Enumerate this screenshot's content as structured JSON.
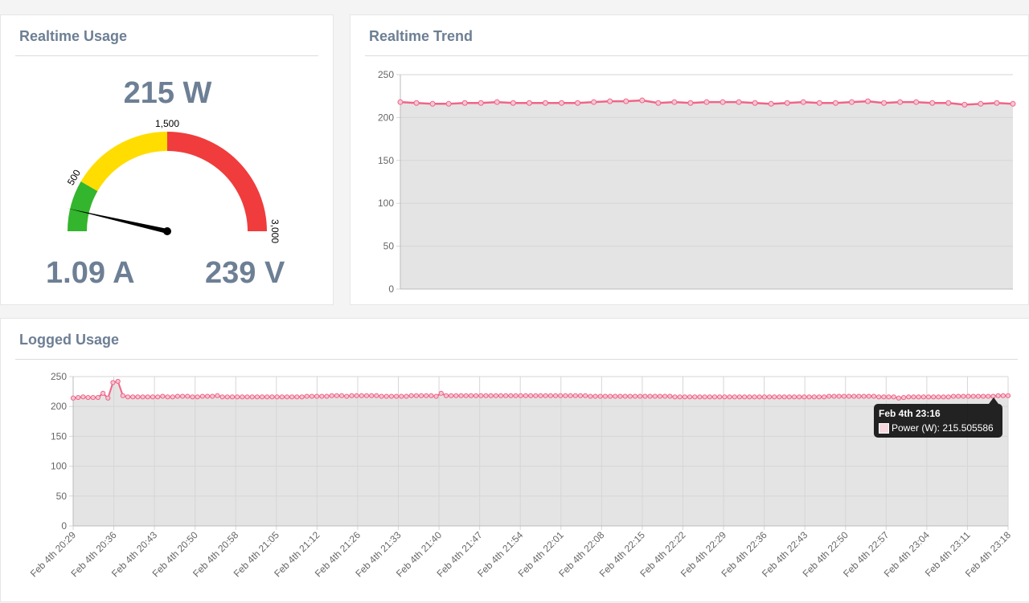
{
  "usage_panel": {
    "title": "Realtime Usage",
    "power": "215 W",
    "current": "1.09 A",
    "voltage": "239 V",
    "gauge": {
      "min": 0,
      "max": 3000,
      "value": 215,
      "bands": [
        {
          "from": 0,
          "to": 500,
          "color": "#33b52d"
        },
        {
          "from": 500,
          "to": 1500,
          "color": "#ffdd00"
        },
        {
          "from": 1500,
          "to": 3000,
          "color": "#f03c3c"
        }
      ],
      "tick_labels": [
        "500",
        "1,500",
        "3,000"
      ],
      "tick_values": [
        500,
        1500,
        3000
      ]
    }
  },
  "trend_panel": {
    "title": "Realtime Trend"
  },
  "logged_panel": {
    "title": "Logged Usage"
  },
  "tooltip": {
    "title": "Feb 4th 23:16",
    "label": "Power (W): 215.505586"
  },
  "colors": {
    "line": "#f06488",
    "fill": "#e4e4e4",
    "title": "#6d7f94"
  },
  "chart_data": [
    {
      "type": "area",
      "title": "Realtime Trend",
      "series": [
        {
          "values": [
            218,
            217,
            216,
            216,
            217,
            217,
            218,
            217,
            217,
            217,
            217,
            217,
            218,
            219,
            219,
            220,
            217,
            218,
            217,
            218,
            218,
            218,
            217,
            216,
            217,
            218,
            217,
            217,
            218,
            219,
            217,
            218,
            218,
            217,
            217,
            215,
            216,
            217,
            216
          ]
        }
      ],
      "ylim": [
        0,
        250
      ],
      "yticks": [
        0,
        50,
        100,
        150,
        200,
        250
      ],
      "grid": true
    },
    {
      "type": "area",
      "title": "Logged Usage",
      "x_labels": [
        "Feb 4th 20:29",
        "Feb 4th 20:36",
        "Feb 4th 20:43",
        "Feb 4th 20:50",
        "Feb 4th 20:58",
        "Feb 4th 21:05",
        "Feb 4th 21:12",
        "Feb 4th 21:26",
        "Feb 4th 21:33",
        "Feb 4th 21:40",
        "Feb 4th 21:47",
        "Feb 4th 21:54",
        "Feb 4th 22:01",
        "Feb 4th 22:08",
        "Feb 4th 22:15",
        "Feb 4th 22:22",
        "Feb 4th 22:29",
        "Feb 4th 22:36",
        "Feb 4th 22:43",
        "Feb 4th 22:50",
        "Feb 4th 22:57",
        "Feb 4th 23:04",
        "Feb 4th 23:11",
        "Feb 4th 23:18"
      ],
      "series": [
        {
          "name": "Power (W)",
          "values": [
            214,
            215,
            216,
            215,
            215,
            215,
            222,
            214,
            240,
            242,
            218,
            216,
            216,
            216,
            216,
            216,
            216,
            216,
            217,
            216,
            216,
            217,
            217,
            217,
            216,
            216,
            217,
            217,
            217,
            218,
            216,
            216,
            216,
            216,
            216,
            216,
            216,
            216,
            216,
            216,
            216,
            216,
            216,
            216,
            216,
            216,
            216,
            217,
            217,
            217,
            217,
            217,
            218,
            218,
            218,
            217,
            218,
            218,
            218,
            218,
            218,
            218,
            217,
            217,
            217,
            217,
            217,
            217,
            218,
            218,
            218,
            218,
            218,
            217,
            222,
            218,
            218,
            218,
            218,
            218,
            218,
            218,
            218,
            218,
            218,
            218,
            218,
            218,
            218,
            218,
            218,
            218,
            218,
            218,
            218,
            218,
            218,
            218,
            218,
            218,
            218,
            218,
            218,
            218,
            217,
            217,
            217,
            217,
            217,
            217,
            217,
            217,
            217,
            217,
            217,
            217,
            217,
            217,
            217,
            217,
            217,
            216,
            216,
            216,
            216,
            216,
            216,
            216,
            216,
            216,
            216,
            216,
            216,
            216,
            216,
            216,
            216,
            216,
            216,
            216,
            216,
            216,
            216,
            216,
            216,
            216,
            216,
            216,
            216,
            216,
            216,
            216,
            217,
            217,
            217,
            217,
            217,
            217,
            217,
            217,
            217,
            217,
            216,
            216,
            216,
            216,
            214,
            215,
            216,
            216,
            216,
            216,
            216,
            216,
            216,
            216,
            216,
            217,
            217,
            217,
            217,
            217,
            217,
            217,
            217,
            217,
            218,
            218,
            218
          ]
        }
      ],
      "ylim": [
        0,
        250
      ],
      "yticks": [
        0,
        50,
        100,
        150,
        200,
        250
      ],
      "grid": true
    }
  ]
}
